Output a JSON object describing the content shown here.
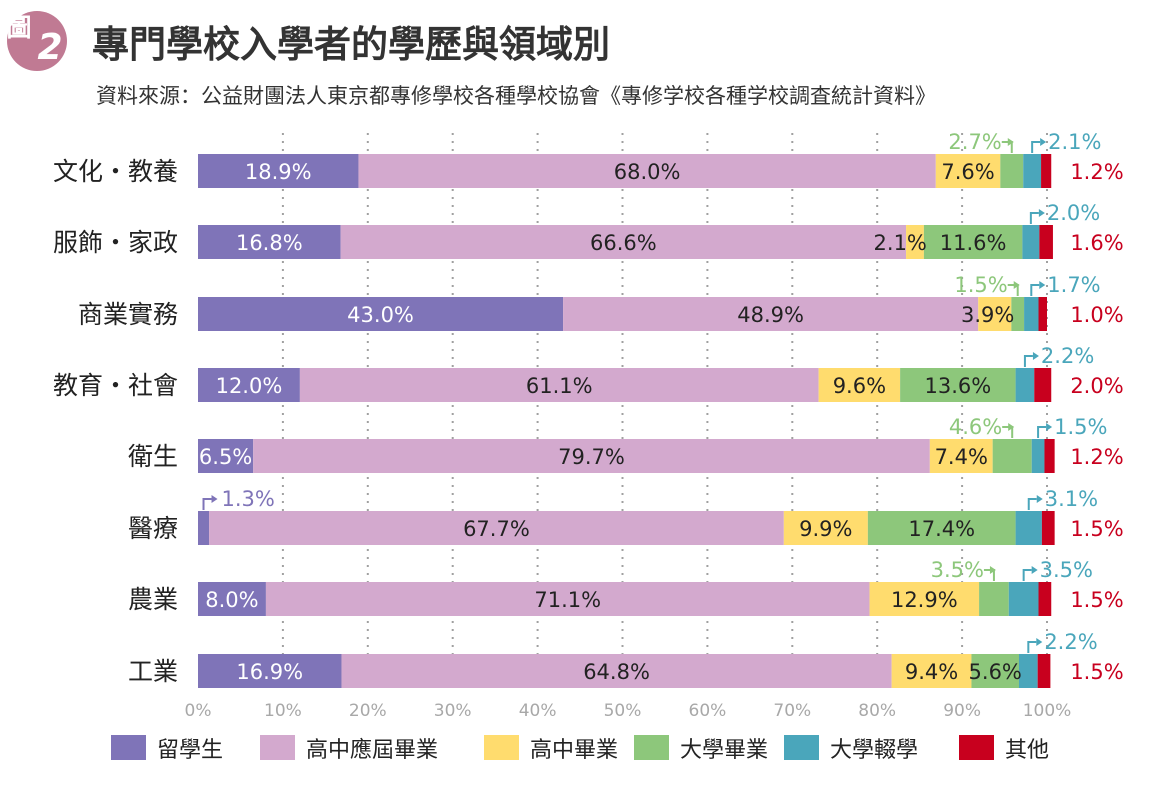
{
  "badge": {
    "prefix": "圖",
    "number": "2"
  },
  "title": "專門學校入學者的學歷與領域別",
  "source": "資料來源：公益財團法人東京都專修學校各種學校協會《專修学校各種学校調査統計資料》",
  "colors": {
    "badge": "#c07a93",
    "study_abroad": "#7f74b8",
    "hs_fresh": "#d3a9ce",
    "hs_grad": "#ffdc6e",
    "univ_grad": "#8dc77b",
    "univ_transfer": "#4aa6bb",
    "other": "#c8001e",
    "red_text": "#c8001e"
  },
  "chart_data": {
    "type": "bar",
    "orientation": "horizontal",
    "stacked": true,
    "title": "專門學校入學者的學歷與領域別",
    "categories": [
      "文化・教養",
      "服飾・家政",
      "商業實務",
      "教育・社會",
      "衛生",
      "醫療",
      "農業",
      "工業"
    ],
    "series": [
      {
        "name": "留學生",
        "values": [
          18.9,
          16.8,
          43.0,
          12.0,
          6.5,
          1.3,
          8.0,
          16.9
        ]
      },
      {
        "name": "高中應屆畢業",
        "values": [
          68.0,
          66.6,
          48.9,
          61.1,
          79.7,
          67.7,
          71.1,
          64.8
        ]
      },
      {
        "name": "高中畢業",
        "values": [
          7.6,
          2.1,
          3.9,
          9.6,
          7.4,
          9.9,
          12.9,
          9.4
        ]
      },
      {
        "name": "大學畢業",
        "values": [
          2.7,
          11.6,
          1.5,
          13.6,
          4.6,
          17.4,
          3.5,
          5.6
        ]
      },
      {
        "name": "大學輟學",
        "values": [
          2.1,
          2.0,
          1.7,
          2.2,
          1.5,
          3.1,
          3.5,
          2.2
        ]
      },
      {
        "name": "其他",
        "values": [
          1.2,
          1.6,
          1.0,
          2.0,
          1.2,
          1.5,
          1.5,
          1.5
        ]
      }
    ],
    "value_labels": [
      [
        "18.9%",
        "68.0%",
        "7.6%",
        "2.7%",
        "2.1%",
        "1.2%"
      ],
      [
        "16.8%",
        "66.6%",
        "2.1%",
        "11.6%",
        "2.0%",
        "1.6%"
      ],
      [
        "43.0%",
        "48.9%",
        "3.9%",
        "1.5%",
        "1.7%",
        "1.0%"
      ],
      [
        "12.0%",
        "61.1%",
        "9.6%",
        "13.6%",
        "2.2%",
        "2.0%"
      ],
      [
        "6.5%",
        "79.7%",
        "7.4%",
        "4.6%",
        "1.5%",
        "1.2%"
      ],
      [
        "1.3%",
        "67.7%",
        "9.9%",
        "17.4%",
        "3.1%",
        "1.5%"
      ],
      [
        "8.0%",
        "71.1%",
        "12.9%",
        "3.5%",
        "3.5%",
        "1.5%"
      ],
      [
        "16.9%",
        "64.8%",
        "9.4%",
        "5.6%",
        "2.2%",
        "1.5%"
      ]
    ],
    "x_ticks": [
      "0%",
      "10%",
      "20%",
      "30%",
      "40%",
      "50%",
      "60%",
      "70%",
      "80%",
      "90%",
      "100%"
    ],
    "xlim": [
      0,
      100
    ],
    "grid": "vertical dotted",
    "legend": "bottom"
  }
}
